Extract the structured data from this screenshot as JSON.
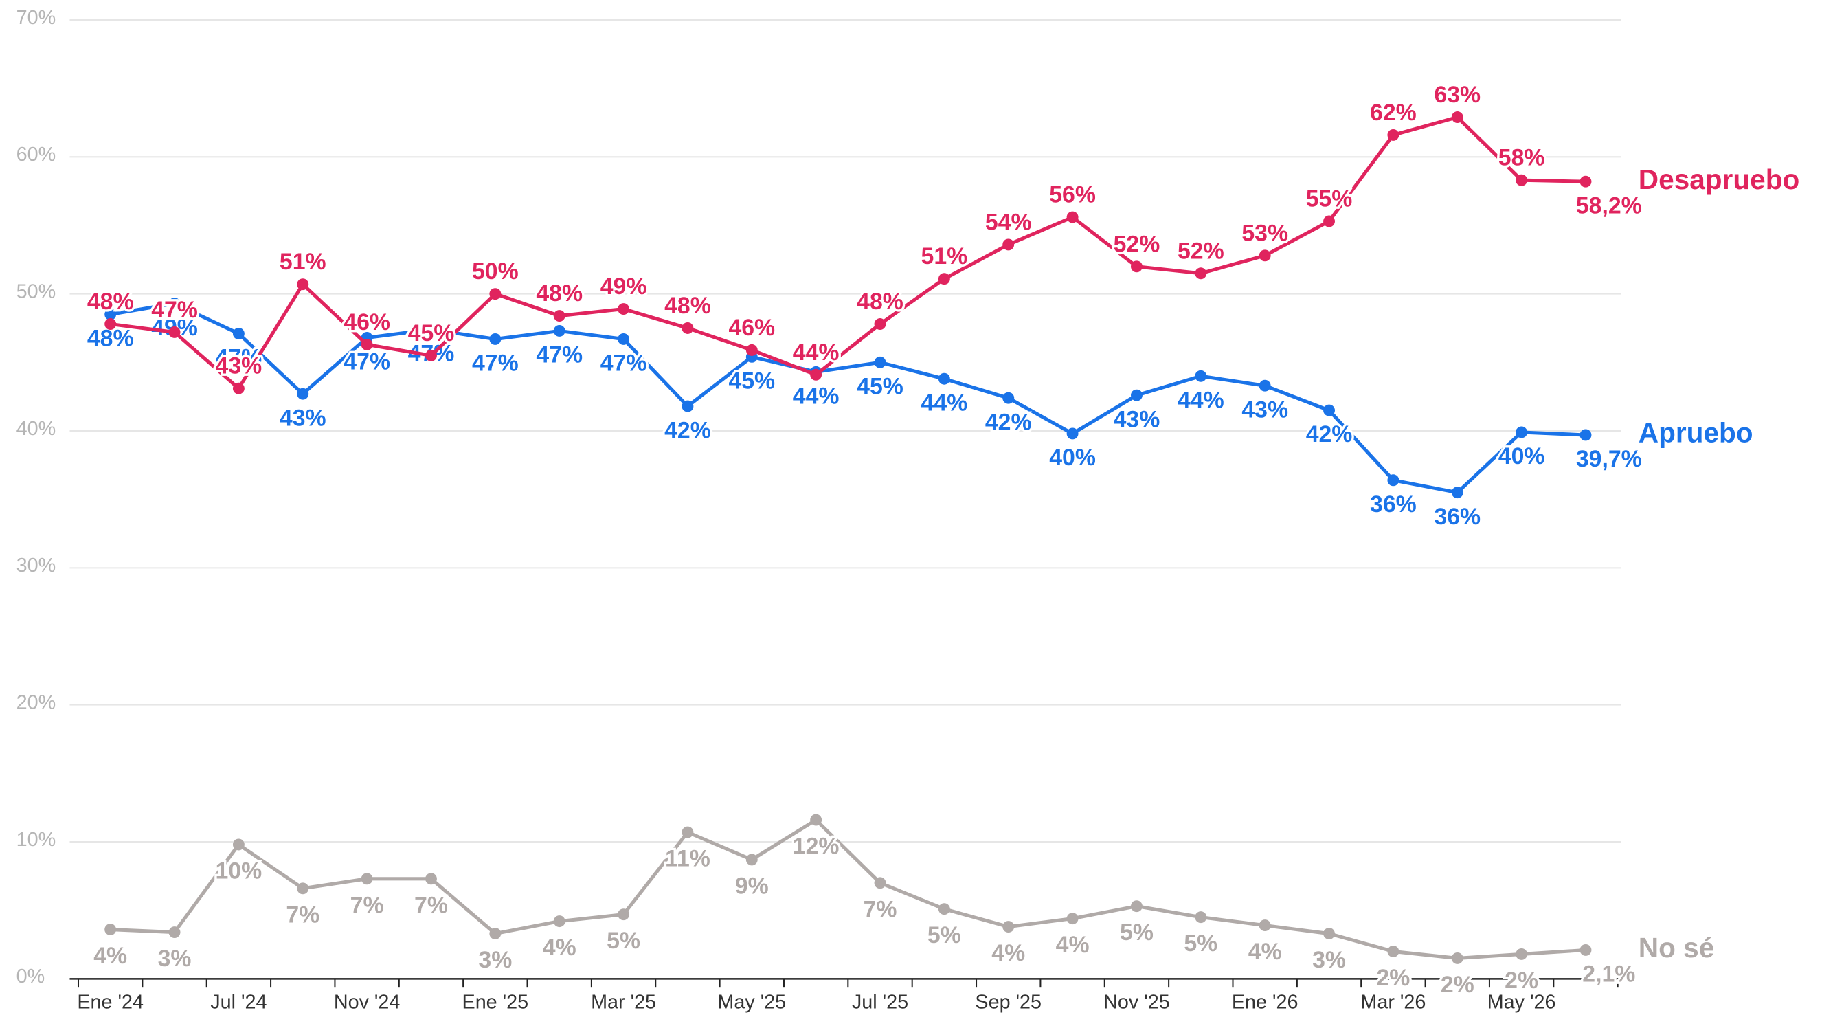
{
  "chart_data": {
    "type": "line",
    "categories": [
      "Ene '24",
      null,
      "Jul '24",
      null,
      "Nov '24",
      null,
      "Ene '25",
      null,
      "Mar '25",
      null,
      "May '25",
      null,
      "Jul '25",
      null,
      "Sep '25",
      null,
      "Nov '25",
      null,
      "Ene '26",
      null,
      "Mar '26",
      null,
      "May '26",
      null
    ],
    "series": [
      {
        "name": "Desapruebo",
        "color": "#e0245e",
        "values": [
          47.8,
          47.2,
          43.1,
          50.7,
          46.3,
          45.5,
          50,
          48.4,
          48.9,
          47.5,
          45.9,
          44.1,
          47.8,
          51.1,
          53.6,
          55.6,
          52,
          51.5,
          52.8,
          55.3,
          61.6,
          62.9,
          58.3,
          58.2
        ],
        "value_labels": [
          "48%",
          "47%",
          "43%",
          "51%",
          "46%",
          "45%",
          "50%",
          "48%",
          "49%",
          "48%",
          "46%",
          "44%",
          "48%",
          "51%",
          "54%",
          "56%",
          "52%",
          "52%",
          "53%",
          "55%",
          "62%",
          "63%",
          "58%",
          "58,2%"
        ]
      },
      {
        "name": "Apruebo",
        "color": "#1a73e8",
        "values": [
          48.5,
          49.3,
          47.1,
          42.7,
          46.8,
          47.4,
          46.7,
          47.3,
          46.7,
          41.8,
          45.4,
          44.3,
          45,
          43.8,
          42.4,
          39.8,
          42.6,
          44,
          43.3,
          41.5,
          36.4,
          35.5,
          39.9,
          39.7
        ],
        "value_labels": [
          "48%",
          "49%",
          "47%",
          "43%",
          "47%",
          "47%",
          "47%",
          "47%",
          "47%",
          "42%",
          "45%",
          "44%",
          "45%",
          "44%",
          "42%",
          "40%",
          "43%",
          "44%",
          "43%",
          "42%",
          "36%",
          "36%",
          "40%",
          "39,7%"
        ]
      },
      {
        "name": "No sé",
        "color": "#b0aaa8",
        "values": [
          3.6,
          3.4,
          9.8,
          6.6,
          7.3,
          7.3,
          3.3,
          4.2,
          4.7,
          10.7,
          8.7,
          11.6,
          7,
          5.1,
          3.8,
          4.4,
          5.3,
          4.5,
          3.9,
          3.3,
          2,
          1.5,
          1.8,
          2.1
        ],
        "value_labels": [
          "4%",
          "3%",
          "10%",
          "7%",
          "7%",
          "7%",
          "3%",
          "4%",
          "5%",
          "11%",
          "9%",
          "12%",
          "7%",
          "5%",
          "4%",
          "4%",
          "5%",
          "5%",
          "4%",
          "3%",
          "2%",
          "2%",
          "2%",
          "2,1%"
        ]
      }
    ],
    "ylim": [
      0,
      70
    ],
    "yticks": [
      {
        "value": 0,
        "label": "0%"
      },
      {
        "value": 10,
        "label": "10%"
      },
      {
        "value": 20,
        "label": "20%"
      },
      {
        "value": 30,
        "label": "30%"
      },
      {
        "value": 40,
        "label": "40%"
      },
      {
        "value": 50,
        "label": "50%"
      },
      {
        "value": 60,
        "label": "60%"
      },
      {
        "value": 70,
        "label": "70%"
      }
    ],
    "grid": true
  }
}
